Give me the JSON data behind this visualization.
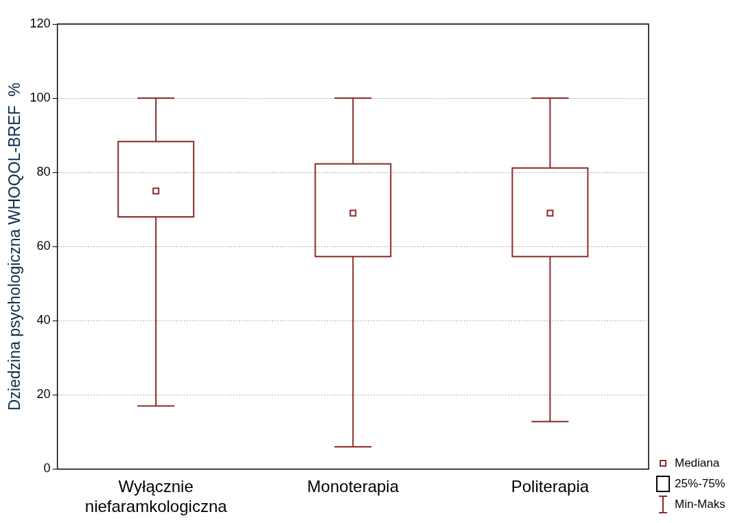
{
  "chart_data": {
    "type": "box",
    "ylabel": "Dziedzina psychologiczna WHOQOL-BREF  %",
    "categories": [
      "Wyłącznie niefaramkologiczna",
      "Monoterapia",
      "Politerapia"
    ],
    "series": [
      {
        "color": "#8b2a2a",
        "boxes": [
          {
            "low": 17,
            "q1": 68,
            "median": 75,
            "q3": 88.3,
            "high": 100
          },
          {
            "low": 6,
            "q1": 57.3,
            "median": 69,
            "q3": 82.3,
            "high": 100
          },
          {
            "low": 12.8,
            "q1": 57.3,
            "median": 69,
            "q3": 81.2,
            "high": 100
          }
        ]
      }
    ],
    "ylim": [
      0,
      120
    ],
    "yticks": [
      0,
      20,
      40,
      60,
      80,
      100,
      120
    ],
    "grid": "y",
    "annotations": [
      "Mediana",
      "25%-75%",
      "Min-Maks"
    ]
  }
}
